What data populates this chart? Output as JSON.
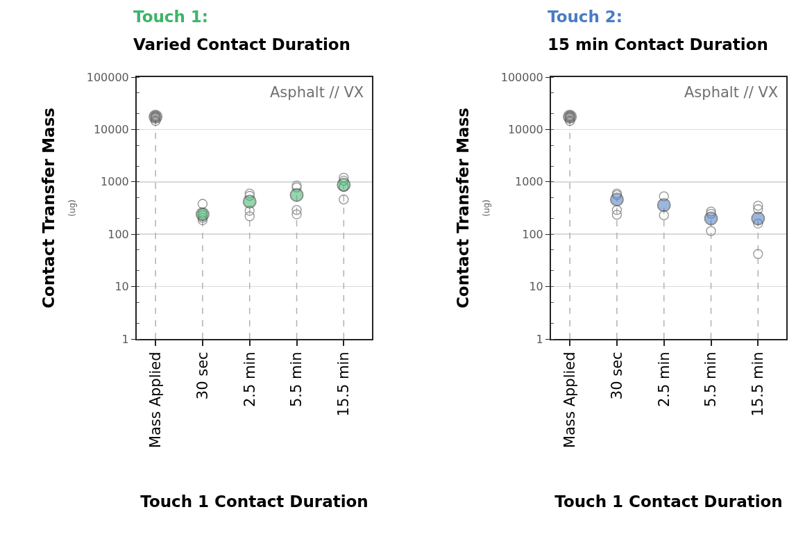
{
  "chart_data": [
    {
      "type": "scatter",
      "title": "Touch 1:",
      "subtitle": "Varied Contact Duration",
      "xlabel": "Touch 1 Contact Duration",
      "ylabel": "Contact Transfer Mass\n(ug)",
      "annotations": [
        "Asphalt // VX"
      ],
      "categories": [
        "Mass Applied",
        "30 sec",
        "2.5 min",
        "5.5 min",
        "15.5 min"
      ],
      "series": [
        {
          "color": "#808080",
          "marker": "circle",
          "x": [
            "Mass Applied",
            "Mass Applied",
            "Mass Applied",
            "30 sec",
            "30 sec",
            "30 sec",
            "30 sec",
            "30 sec",
            "2.5 min",
            "2.5 min",
            "2.5 min",
            "2.5 min",
            "5.5 min",
            "5.5 min",
            "5.5 min",
            "5.5 min",
            "15.5 min",
            "15.5 min",
            "15.5 min",
            "15.5 min"
          ],
          "values": [
            14500,
            17000,
            18000,
            380,
            250,
            230,
            205,
            185,
            600,
            540,
            280,
            220,
            850,
            780,
            290,
            240,
            1200,
            1050,
            800,
            460
          ]
        },
        {
          "type": "lollipop",
          "color": "#3cb56a",
          "colors": [
            "#595959",
            "#3cb56a",
            "#3cb56a",
            "#3cb56a",
            "#3cb56a"
          ],
          "marker": "circle",
          "line_style": "dashed",
          "values": [
            17500,
            240,
            420,
            560,
            880
          ]
        }
      ],
      "log": "y",
      "ylim": [
        1,
        100000
      ],
      "yticks": [
        1,
        10,
        100,
        1000,
        10000,
        100000
      ],
      "grid": "y"
    },
    {
      "type": "scatter",
      "title": "Touch 2:",
      "subtitle": "15 min Contact Duration",
      "xlabel": "Touch 1 Contact Duration",
      "ylabel": "Contact Transfer Mass\n(ug)",
      "annotations": [
        "Asphalt // VX"
      ],
      "categories": [
        "Mass Applied",
        "30 sec",
        "2.5 min",
        "5.5 min",
        "15.5 min"
      ],
      "series": [
        {
          "color": "#808080",
          "marker": "circle",
          "x": [
            "Mass Applied",
            "Mass Applied",
            "Mass Applied",
            "30 sec",
            "30 sec",
            "30 sec",
            "30 sec",
            "2.5 min",
            "2.5 min",
            "5.5 min",
            "5.5 min",
            "5.5 min",
            "15.5 min",
            "15.5 min",
            "15.5 min",
            "15.5 min"
          ],
          "values": [
            14500,
            17000,
            18000,
            600,
            560,
            290,
            235,
            530,
            230,
            270,
            245,
            115,
            350,
            300,
            160,
            42
          ]
        },
        {
          "type": "lollipop",
          "color": "#4a7cc4",
          "colors": [
            "#595959",
            "#4a7cc4",
            "#4a7cc4",
            "#4a7cc4",
            "#4a7cc4"
          ],
          "marker": "circle",
          "line_style": "dashed",
          "values": [
            17500,
            460,
            360,
            200,
            200
          ]
        }
      ],
      "log": "y",
      "ylim": [
        1,
        100000
      ],
      "yticks": [
        1,
        10,
        100,
        1000,
        10000,
        100000
      ],
      "grid": "y"
    }
  ]
}
